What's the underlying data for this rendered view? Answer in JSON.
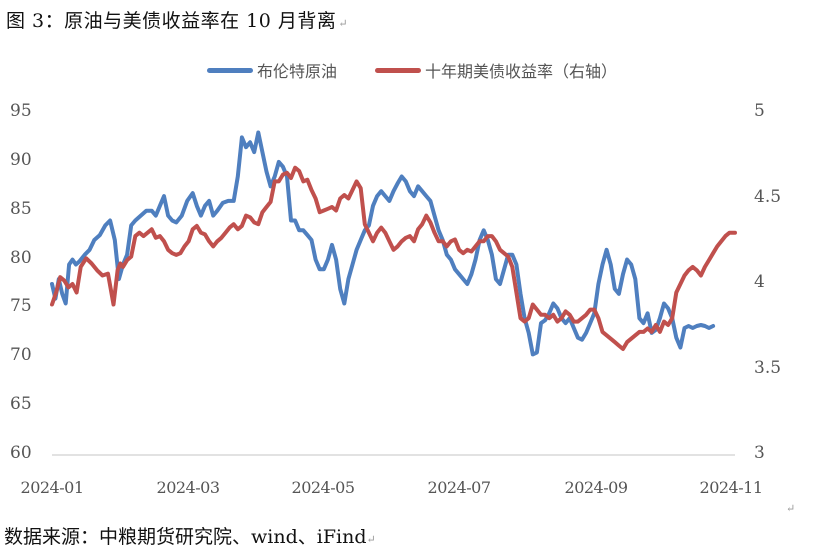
{
  "title": "图 3：原油与美债收益率在 10 月背离",
  "paragraph_mark": "↵",
  "legend": [
    {
      "label": "布伦特原油",
      "color": "#4F7FBF"
    },
    {
      "label": "十年期美债收益率（右轴）",
      "color": "#C0504D"
    }
  ],
  "source": "数据来源：中粮期货研究院、wind、iFind",
  "chart_data": {
    "type": "line",
    "title": "图 3：原油与美债收益率在 10 月背离",
    "xlabel": "",
    "ylabel_left": "",
    "ylabel_right": "",
    "x_tick_labels": [
      "2024-01",
      "2024-03",
      "2024-05",
      "2024-07",
      "2024-09",
      "2024-11"
    ],
    "y_left": {
      "ticks": [
        60,
        65,
        70,
        75,
        80,
        85,
        90,
        95
      ],
      "range": [
        60,
        95
      ]
    },
    "y_right": {
      "ticks": [
        3,
        3.5,
        4,
        4.5,
        5
      ],
      "range": [
        3,
        5
      ]
    },
    "grid": false,
    "legend_position": "top",
    "x_range": [
      "2024-01-02",
      "2024-11-01"
    ],
    "series": [
      {
        "name": "布伦特原油",
        "axis": "left",
        "color": "#4F7FBF",
        "x_frac": [
          0.0,
          0.005,
          0.01,
          0.015,
          0.02,
          0.025,
          0.03,
          0.035,
          0.04,
          0.048,
          0.055,
          0.062,
          0.07,
          0.078,
          0.085,
          0.092,
          0.098,
          0.104,
          0.11,
          0.116,
          0.122,
          0.13,
          0.138,
          0.146,
          0.152,
          0.158,
          0.164,
          0.17,
          0.176,
          0.182,
          0.19,
          0.198,
          0.206,
          0.212,
          0.218,
          0.224,
          0.23,
          0.236,
          0.242,
          0.25,
          0.258,
          0.266,
          0.272,
          0.278,
          0.284,
          0.29,
          0.296,
          0.302,
          0.308,
          0.314,
          0.32,
          0.326,
          0.332,
          0.338,
          0.344,
          0.35,
          0.356,
          0.362,
          0.368,
          0.374,
          0.38,
          0.386,
          0.392,
          0.398,
          0.404,
          0.41,
          0.416,
          0.422,
          0.428,
          0.434,
          0.44,
          0.446,
          0.452,
          0.458,
          0.464,
          0.47,
          0.476,
          0.482,
          0.488,
          0.494,
          0.5,
          0.506,
          0.512,
          0.518,
          0.524,
          0.53,
          0.536,
          0.542,
          0.548,
          0.554,
          0.56,
          0.566,
          0.572,
          0.578,
          0.584,
          0.59,
          0.596,
          0.602,
          0.608,
          0.614,
          0.62,
          0.626,
          0.632,
          0.638,
          0.644,
          0.65,
          0.656,
          0.662,
          0.668,
          0.674,
          0.68,
          0.686,
          0.692,
          0.698,
          0.704,
          0.71,
          0.716,
          0.722,
          0.728,
          0.734,
          0.74,
          0.746,
          0.752,
          0.758,
          0.764,
          0.77,
          0.776,
          0.782,
          0.788,
          0.794,
          0.8,
          0.806,
          0.812,
          0.818,
          0.824,
          0.83,
          0.836,
          0.842,
          0.848,
          0.854,
          0.86,
          0.866,
          0.872,
          0.878,
          0.884,
          0.89,
          0.896,
          0.902,
          0.908,
          0.914,
          0.92,
          0.926,
          0.932,
          0.938,
          0.944,
          0.95,
          0.956,
          0.962,
          0.968,
          0.974,
          0.98,
          0.986,
          0.992,
          1.0
        ],
        "values": [
          77.5,
          76.0,
          78.0,
          76.5,
          75.5,
          79.5,
          80.0,
          79.5,
          79.8,
          80.5,
          81.0,
          82.0,
          82.5,
          83.5,
          84.0,
          82.0,
          78.0,
          79.5,
          80.5,
          83.5,
          84.0,
          84.5,
          85.0,
          85.0,
          84.5,
          85.5,
          86.5,
          84.5,
          84.0,
          83.8,
          84.5,
          86.0,
          86.8,
          85.5,
          84.5,
          85.5,
          86.0,
          84.5,
          85.0,
          85.8,
          86.0,
          86.0,
          88.5,
          92.5,
          91.5,
          92.0,
          91.0,
          93.0,
          91.0,
          89.0,
          87.5,
          88.5,
          90.0,
          89.5,
          88.5,
          84.0,
          84.0,
          83.0,
          83.0,
          82.5,
          82.0,
          80.0,
          79.0,
          79.0,
          80.0,
          81.5,
          80.0,
          77.0,
          75.5,
          78.0,
          79.5,
          81.0,
          82.0,
          83.0,
          83.5,
          85.5,
          86.5,
          87.0,
          86.5,
          86.0,
          87.0,
          87.8,
          88.5,
          88.0,
          87.0,
          86.5,
          87.5,
          87.0,
          86.5,
          86.0,
          84.5,
          83.0,
          82.0,
          80.5,
          80.0,
          79.0,
          78.5,
          78.0,
          77.5,
          78.5,
          80.0,
          82.0,
          83.0,
          82.0,
          80.5,
          78.0,
          77.5,
          79.0,
          80.5,
          80.5,
          79.5,
          76.5,
          74.0,
          72.5,
          70.3,
          70.5,
          73.5,
          73.8,
          74.5,
          75.5,
          75.0,
          74.0,
          73.5,
          74.0,
          73.0,
          72.0,
          71.8,
          72.5,
          73.5,
          74.5,
          77.5,
          79.5,
          81.0,
          79.5,
          77.0,
          76.5,
          78.5,
          80.0,
          79.5,
          78.0,
          74.0,
          73.5,
          74.5,
          72.5,
          72.8,
          74.0,
          75.5,
          75.0,
          74.0,
          72.0,
          71.0,
          73.0,
          73.2,
          73.0,
          73.2,
          73.3,
          73.2,
          73.0,
          73.2
        ]
      },
      {
        "name": "十年期美债收益率（右轴）",
        "axis": "right",
        "color": "#C0504D",
        "x_frac": [
          0.0,
          0.006,
          0.012,
          0.018,
          0.024,
          0.03,
          0.036,
          0.042,
          0.05,
          0.058,
          0.066,
          0.074,
          0.082,
          0.09,
          0.096,
          0.1,
          0.104,
          0.11,
          0.116,
          0.122,
          0.128,
          0.134,
          0.14,
          0.146,
          0.152,
          0.158,
          0.164,
          0.17,
          0.176,
          0.182,
          0.188,
          0.194,
          0.2,
          0.206,
          0.212,
          0.218,
          0.224,
          0.23,
          0.236,
          0.242,
          0.248,
          0.254,
          0.26,
          0.266,
          0.272,
          0.278,
          0.284,
          0.29,
          0.296,
          0.302,
          0.308,
          0.314,
          0.32,
          0.326,
          0.332,
          0.338,
          0.344,
          0.35,
          0.356,
          0.362,
          0.368,
          0.374,
          0.38,
          0.386,
          0.392,
          0.398,
          0.404,
          0.41,
          0.416,
          0.422,
          0.428,
          0.434,
          0.44,
          0.446,
          0.452,
          0.458,
          0.464,
          0.47,
          0.476,
          0.482,
          0.488,
          0.494,
          0.5,
          0.506,
          0.512,
          0.518,
          0.524,
          0.53,
          0.536,
          0.542,
          0.548,
          0.554,
          0.56,
          0.566,
          0.572,
          0.578,
          0.584,
          0.59,
          0.596,
          0.602,
          0.608,
          0.614,
          0.62,
          0.626,
          0.632,
          0.638,
          0.644,
          0.65,
          0.656,
          0.662,
          0.668,
          0.674,
          0.68,
          0.686,
          0.692,
          0.698,
          0.704,
          0.71,
          0.716,
          0.722,
          0.728,
          0.734,
          0.74,
          0.746,
          0.752,
          0.758,
          0.764,
          0.77,
          0.776,
          0.782,
          0.788,
          0.794,
          0.8,
          0.806,
          0.812,
          0.818,
          0.824,
          0.83,
          0.836,
          0.842,
          0.848,
          0.854,
          0.86,
          0.866,
          0.872,
          0.878,
          0.884,
          0.89,
          0.896,
          0.902,
          0.908,
          0.914,
          0.92,
          0.926,
          0.932,
          0.938,
          0.944,
          0.95,
          0.956,
          0.962,
          0.968,
          0.974,
          0.98,
          0.986,
          0.992,
          1.0
        ],
        "values": [
          3.88,
          3.95,
          4.04,
          4.02,
          3.98,
          4.0,
          3.95,
          4.1,
          4.15,
          4.12,
          4.08,
          4.05,
          4.06,
          3.88,
          4.08,
          4.12,
          4.1,
          4.14,
          4.16,
          4.28,
          4.3,
          4.28,
          4.3,
          4.32,
          4.27,
          4.28,
          4.25,
          4.2,
          4.18,
          4.17,
          4.18,
          4.22,
          4.25,
          4.32,
          4.34,
          4.3,
          4.29,
          4.25,
          4.22,
          4.25,
          4.27,
          4.3,
          4.33,
          4.35,
          4.32,
          4.34,
          4.4,
          4.39,
          4.36,
          4.35,
          4.42,
          4.45,
          4.48,
          4.6,
          4.6,
          4.64,
          4.65,
          4.62,
          4.68,
          4.66,
          4.6,
          4.61,
          4.55,
          4.5,
          4.42,
          4.43,
          4.44,
          4.45,
          4.43,
          4.5,
          4.52,
          4.5,
          4.55,
          4.6,
          4.56,
          4.35,
          4.3,
          4.25,
          4.3,
          4.33,
          4.3,
          4.25,
          4.2,
          4.22,
          4.25,
          4.27,
          4.28,
          4.25,
          4.32,
          4.35,
          4.4,
          4.36,
          4.3,
          4.25,
          4.25,
          4.22,
          4.25,
          4.26,
          4.2,
          4.18,
          4.2,
          4.19,
          4.22,
          4.25,
          4.25,
          4.28,
          4.28,
          4.25,
          4.2,
          4.18,
          4.16,
          4.1,
          3.95,
          3.8,
          3.78,
          3.8,
          3.88,
          3.85,
          3.82,
          3.82,
          3.8,
          3.82,
          3.78,
          3.8,
          3.84,
          3.82,
          3.78,
          3.78,
          3.8,
          3.82,
          3.85,
          3.85,
          3.8,
          3.72,
          3.7,
          3.68,
          3.66,
          3.64,
          3.62,
          3.66,
          3.68,
          3.7,
          3.72,
          3.72,
          3.74,
          3.72,
          3.76,
          3.72,
          3.78,
          3.76,
          3.8,
          3.95,
          4.0,
          4.05,
          4.08,
          4.1,
          4.08,
          4.05,
          4.1,
          4.14,
          4.18,
          4.22,
          4.25,
          4.28,
          4.3,
          4.3,
          4.38
        ]
      }
    ]
  }
}
